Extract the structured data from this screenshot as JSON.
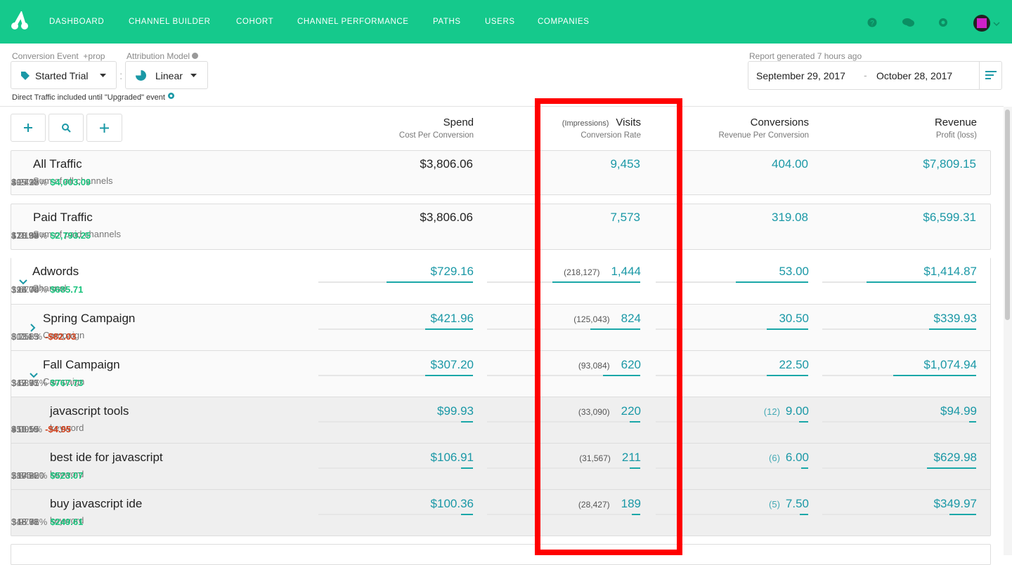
{
  "nav": {
    "items": [
      "DASHBOARD",
      "CHANNEL BUILDER",
      "COHORT",
      "CHANNEL PERFORMANCE",
      "PATHS",
      "USERS",
      "COMPANIES"
    ]
  },
  "controls": {
    "conversion_event": {
      "label": "Conversion Event",
      "extra": "+prop",
      "value": "Started Trial"
    },
    "attribution_model": {
      "label": "Attribution Model",
      "value": "Linear"
    },
    "note": "Direct Traffic included until \"Upgraded\" event",
    "report_status": "Report generated 7 hours ago",
    "date_start": "September 29, 2017",
    "date_separator": "-",
    "date_end": "October 28, 2017"
  },
  "table": {
    "columns": [
      {
        "title": "Spend",
        "sub": "Cost Per Conversion"
      },
      {
        "prefix": "(Impressions)",
        "title": "Visits",
        "sub": "Conversion Rate"
      },
      {
        "title": "Conversions",
        "sub": "Revenue Per Conversion"
      },
      {
        "title": "Revenue",
        "sub": "Profit (loss)"
      }
    ],
    "rows": [
      {
        "name": "All Traffic",
        "sub": "Sum of all channels",
        "spend": "$3,806.06",
        "cpc": "$9.42",
        "visits": "9,453",
        "rate": "4.27%",
        "conversions": "404.00",
        "rpc": "$19.33",
        "revenue": "$7,809.15",
        "pct": "205.18%",
        "profit": "$4,003.09"
      },
      {
        "name": "Paid Traffic",
        "sub": "Sum of paid channels",
        "spend": "$3,806.06",
        "cpc": "$11.93",
        "visits": "7,573",
        "rate": "4.21%",
        "conversions": "319.08",
        "rpc": "$20.68",
        "revenue": "$6,599.31",
        "pct": "173.39%",
        "profit": "$2,793.25"
      },
      {
        "name": "Adwords",
        "sub": "Channel",
        "spend": "$729.16",
        "cpc": "$13.76",
        "impressions": "(218,127)",
        "visits": "1,444",
        "rate": "3.67%",
        "conversions": "53.00",
        "rpc": "$26.70",
        "revenue": "$1,414.87",
        "pct": "194.04%",
        "profit": "$685.71"
      },
      {
        "name": "Spring Campaign",
        "sub": "Campaign",
        "spend": "$421.96",
        "cpc": "$13.83",
        "impressions": "(125,043)",
        "visits": "824",
        "rate": "3.7%",
        "conversions": "30.50",
        "rpc": "$11.15",
        "revenue": "$339.93",
        "pct": "80.56%",
        "profit": "-$82.03"
      },
      {
        "name": "Fall Campaign",
        "sub": "Campaign",
        "spend": "$307.20",
        "cpc": "$13.65",
        "impressions": "(93,084)",
        "visits": "620",
        "rate": "3.63%",
        "conversions": "22.50",
        "rpc": "$47.77",
        "revenue": "$1,074.94",
        "pct": "349.91%",
        "profit": "$767.73"
      },
      {
        "name": "javascript tools",
        "sub": "keyword",
        "spend": "$99.93",
        "cpc": "$11.10",
        "impressions": "(33,090)",
        "visits": "220",
        "rate": "4.09%",
        "count": "(12)",
        "conversions": "9.00",
        "rpc": "$10.55",
        "revenue": "$94.99",
        "pct": "95.05%",
        "profit": "-$4.95"
      },
      {
        "name": "best ide for javascript",
        "sub": "keyword",
        "spend": "$106.91",
        "cpc": "$17.82",
        "impressions": "(31,567)",
        "visits": "211",
        "rate": "2.84%",
        "count": "(6)",
        "conversions": "6.00",
        "rpc": "$105.00",
        "revenue": "$629.98",
        "pct": "589.26%",
        "profit": "$523.07"
      },
      {
        "name": "buy javascript ide",
        "sub": "keyword",
        "spend": "$100.36",
        "cpc": "$13.38",
        "impressions": "(28,427)",
        "visits": "189",
        "rate": "3.97%",
        "count": "(5)",
        "conversions": "7.50",
        "rpc": "$46.66",
        "revenue": "$349.97",
        "pct": "348.71%",
        "profit": "$249.61"
      }
    ]
  }
}
